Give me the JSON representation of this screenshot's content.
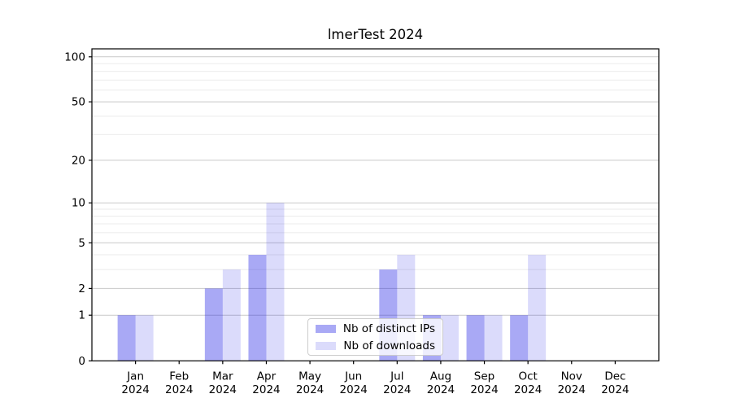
{
  "chart_data": {
    "type": "bar",
    "title": "lmerTest 2024",
    "categories": [
      "Jan",
      "Feb",
      "Mar",
      "Apr",
      "May",
      "Jun",
      "Jul",
      "Aug",
      "Sep",
      "Oct",
      "Nov",
      "Dec"
    ],
    "category_year": "2024",
    "series": [
      {
        "name": "Nb of distinct IPs",
        "color": "rgba(30,30,230,0.38)",
        "values": [
          1,
          0,
          2,
          4,
          0,
          0,
          3,
          1,
          1,
          1,
          0,
          0
        ]
      },
      {
        "name": "Nb of downloads",
        "color": "rgba(30,30,230,0.16)",
        "values": [
          1,
          0,
          3,
          10,
          0,
          0,
          4,
          1,
          1,
          4,
          0,
          0
        ]
      }
    ],
    "xlabel": "",
    "ylabel": "",
    "y_scale": "log1p",
    "y_ticks": [
      0,
      1,
      2,
      5,
      10,
      20,
      50,
      100
    ],
    "y_minor_ticks": [
      3,
      4,
      6,
      7,
      8,
      9,
      30,
      40,
      60,
      70,
      80,
      90
    ],
    "ylim": [
      0,
      113
    ],
    "grid": "horizontal, major and minor, on",
    "legend_position": "lower center",
    "colors": {
      "bar_distinct_ips_on_white": "#a9a9f5",
      "bar_downloads_on_white": "#dbdbfb",
      "major_grid": "#c9c9c9",
      "minor_grid": "#ebebeb",
      "axis": "#000000"
    }
  }
}
